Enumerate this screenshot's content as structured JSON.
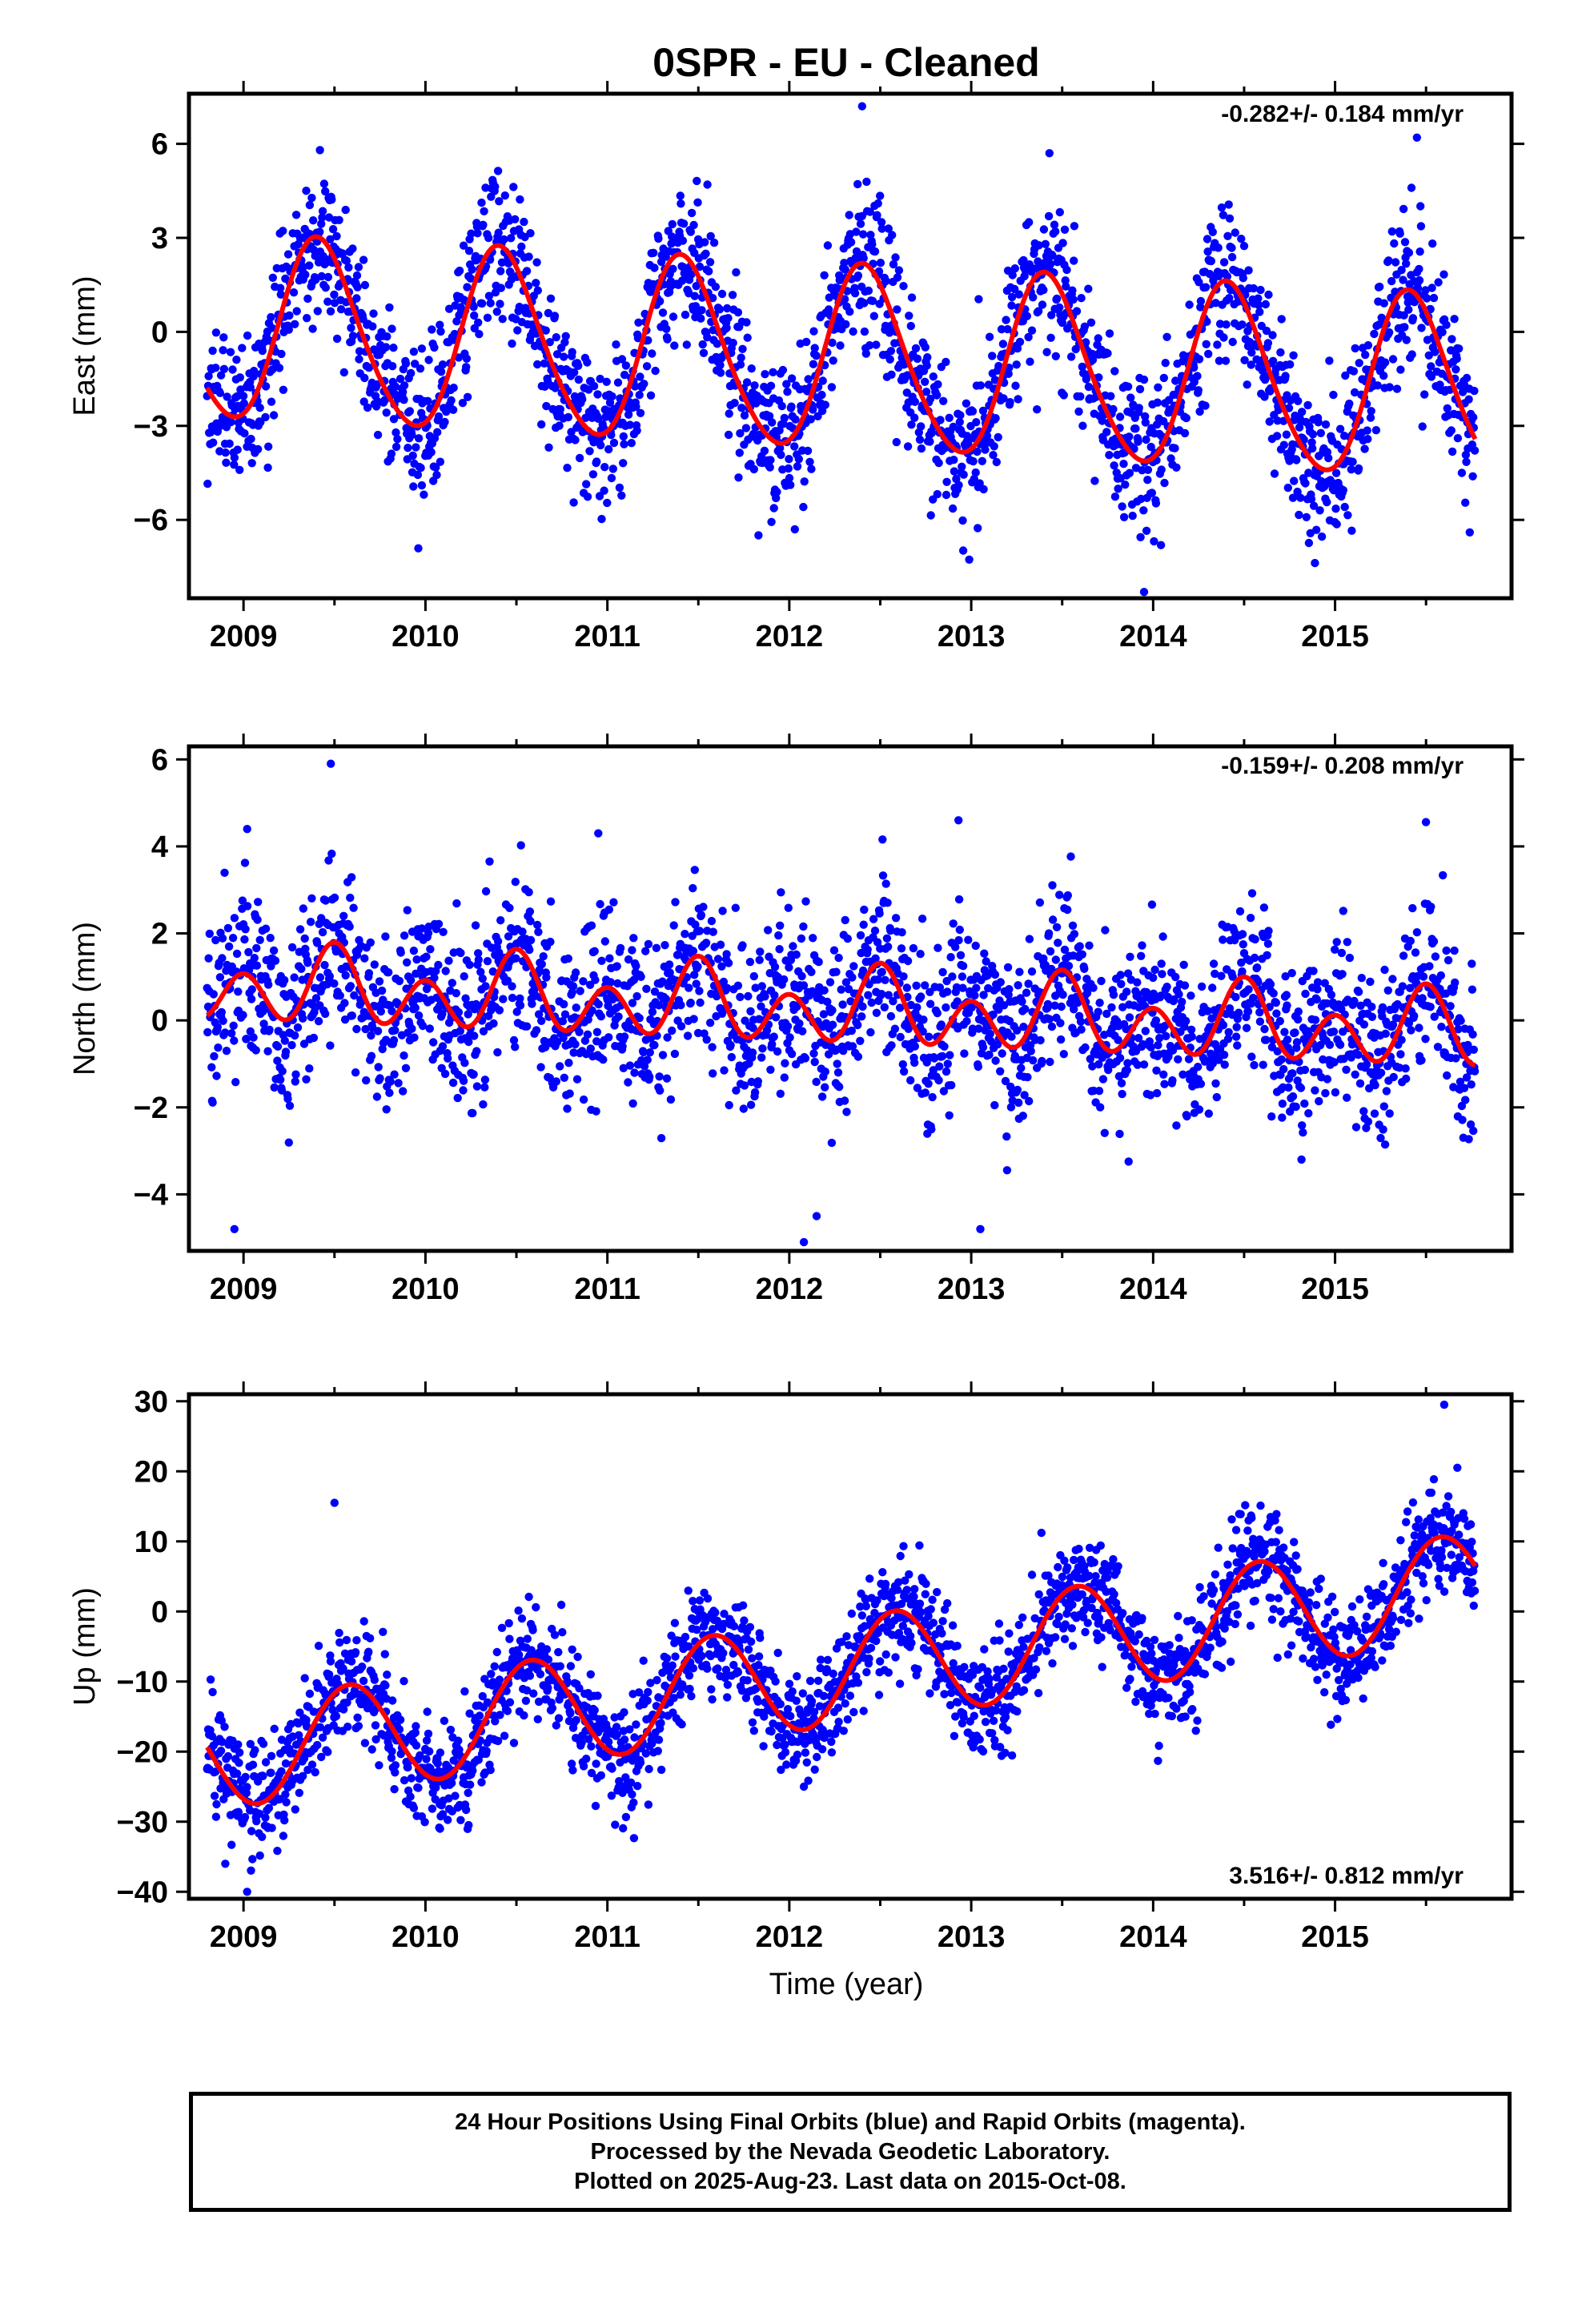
{
  "page": {
    "title": "0SPR  - EU - Cleaned",
    "xlabel": "Time (year)"
  },
  "colors": {
    "points": "#0000ff",
    "fit": "#ff0000",
    "axes": "#000000"
  },
  "caption": {
    "line1": "24 Hour Positions Using Final Orbits (blue) and Rapid Orbits (magenta).",
    "line2": "Processed by the Nevada Geodetic Laboratory.",
    "line3": "Plotted on 2025-Aug-23. Last data on 2015-Oct-08."
  },
  "chart_data": [
    {
      "type": "scatter",
      "component": "east",
      "ylabel": "East (mm)",
      "rate_label": "-0.282+/- 0.184 mm/yr",
      "x_range": [
        2008.7,
        2015.97
      ],
      "ylim": [
        -8.5,
        7.6
      ],
      "x_ticks": [
        2009,
        2010,
        2011,
        2012,
        2013,
        2014,
        2015
      ],
      "y_ticks": [
        {
          "v": 6,
          "label": "6"
        },
        {
          "v": 3,
          "label": "3"
        },
        {
          "v": 0,
          "label": "0"
        },
        {
          "v": -3,
          "label": "−3"
        },
        {
          "v": -6,
          "label": "−6"
        }
      ],
      "data_span": [
        2008.8,
        2015.77
      ],
      "model": {
        "offset": -0.9,
        "rate_mm_per_yr": -0.282,
        "annual_amplitude": 2.9,
        "annual_peak": 0.42,
        "semiannual_amplitude": 0.3,
        "semiannual_peak": 0.35
      },
      "scatter_sd": 1.2,
      "outliers": [
        [
          2009.42,
          5.8
        ],
        [
          2009.98,
          -4.9
        ],
        [
          2011.55,
          4.7
        ],
        [
          2012.4,
          7.2
        ],
        [
          2013.43,
          5.7
        ],
        [
          2013.95,
          -8.3
        ],
        [
          2015.45,
          6.2
        ]
      ]
    },
    {
      "type": "scatter",
      "component": "north",
      "ylabel": "North (mm)",
      "rate_label": "-0.159+/- 0.208 mm/yr",
      "x_range": [
        2008.7,
        2015.97
      ],
      "ylim": [
        -5.3,
        6.3
      ],
      "x_ticks": [
        2009,
        2010,
        2011,
        2012,
        2013,
        2014,
        2015
      ],
      "y_ticks": [
        {
          "v": 6,
          "label": "6"
        },
        {
          "v": 4,
          "label": "4"
        },
        {
          "v": 2,
          "label": "2"
        },
        {
          "v": 0,
          "label": "0"
        },
        {
          "v": -2,
          "label": "−2"
        },
        {
          "v": -4,
          "label": "−4"
        }
      ],
      "data_span": [
        2008.8,
        2015.77
      ],
      "model": {
        "offset": 0.25,
        "rate_mm_per_yr": -0.159,
        "annual_amplitude": 0.4,
        "annual_peak": 0.5,
        "semiannual_amplitude": 0.7,
        "semiannual_peak": 0.0
      },
      "scatter_sd": 0.95,
      "outliers": [
        [
          2009.48,
          5.9
        ],
        [
          2008.95,
          -4.8
        ],
        [
          2009.02,
          4.4
        ],
        [
          2012.93,
          4.6
        ],
        [
          2012.08,
          -5.1
        ],
        [
          2012.15,
          -4.5
        ],
        [
          2010.95,
          4.3
        ],
        [
          2013.05,
          -4.8
        ]
      ]
    },
    {
      "type": "scatter",
      "component": "up",
      "ylabel": "Up (mm)",
      "rate_label": "3.516+/- 0.812 mm/yr",
      "x_range": [
        2008.7,
        2015.97
      ],
      "ylim": [
        -41,
        31
      ],
      "x_ticks": [
        2009,
        2010,
        2011,
        2012,
        2013,
        2014,
        2015
      ],
      "y_ticks": [
        {
          "v": 30,
          "label": "30"
        },
        {
          "v": 20,
          "label": "20"
        },
        {
          "v": 10,
          "label": "10"
        },
        {
          "v": 0,
          "label": "0"
        },
        {
          "v": -10,
          "label": "−10"
        },
        {
          "v": -20,
          "label": "−20"
        },
        {
          "v": -30,
          "label": "−30"
        },
        {
          "v": -40,
          "label": "−40"
        }
      ],
      "data_span": [
        2008.8,
        2015.77
      ],
      "model": {
        "offset": -8.5,
        "rate_mm_per_yr": 3.516,
        "annual_amplitude": 7.6,
        "annual_peak": 0.58,
        "semiannual_amplitude": 0.0,
        "semiannual_peak": 0.0
      },
      "scatter_sd": 3.8,
      "outliers": [
        [
          2009.02,
          -40
        ],
        [
          2010.08,
          -31
        ],
        [
          2009.5,
          15.5
        ],
        [
          2015.6,
          29.5
        ],
        [
          2012.08,
          -25
        ],
        [
          2008.9,
          -36
        ]
      ]
    }
  ]
}
